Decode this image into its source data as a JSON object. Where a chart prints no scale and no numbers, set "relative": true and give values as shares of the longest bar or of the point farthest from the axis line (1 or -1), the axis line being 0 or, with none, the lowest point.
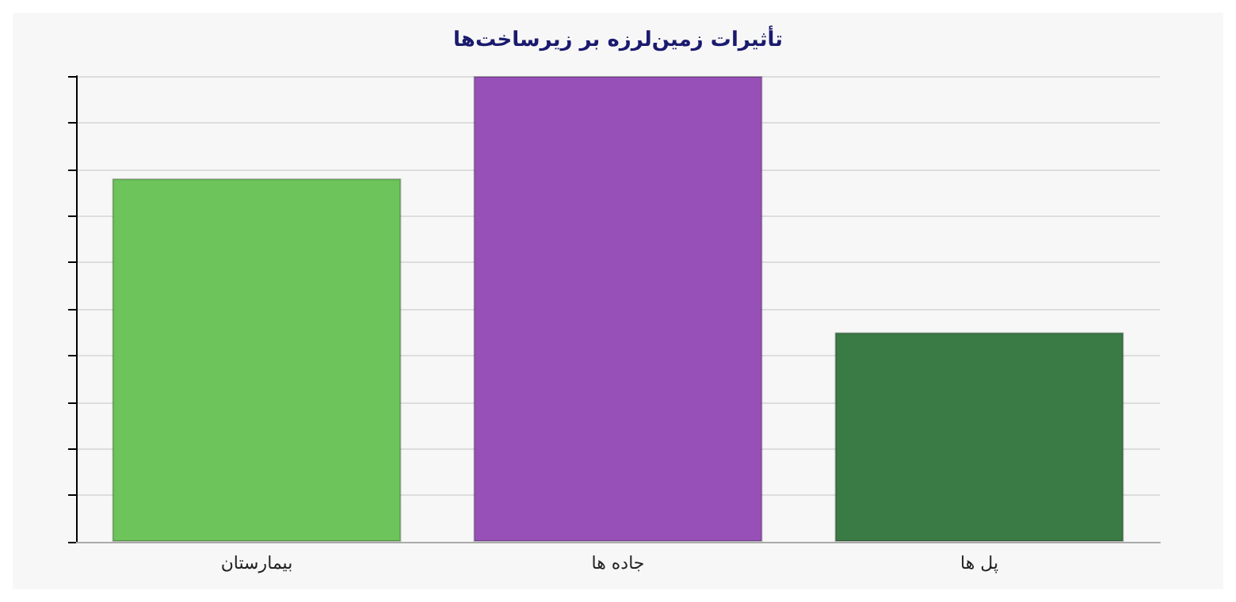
{
  "chart_data": {
    "type": "bar",
    "title": "تأثیرات زمین‌لرزه بر زیرساخت‌ها",
    "relative": true,
    "categories": [
      "بیمارستان",
      "جاده ها",
      "پل ها"
    ],
    "values": [
      0.78,
      1,
      0.45
    ],
    "colors": [
      "#6cc45a",
      "#9650b8",
      "#3a7a45"
    ],
    "grid": "y"
  }
}
